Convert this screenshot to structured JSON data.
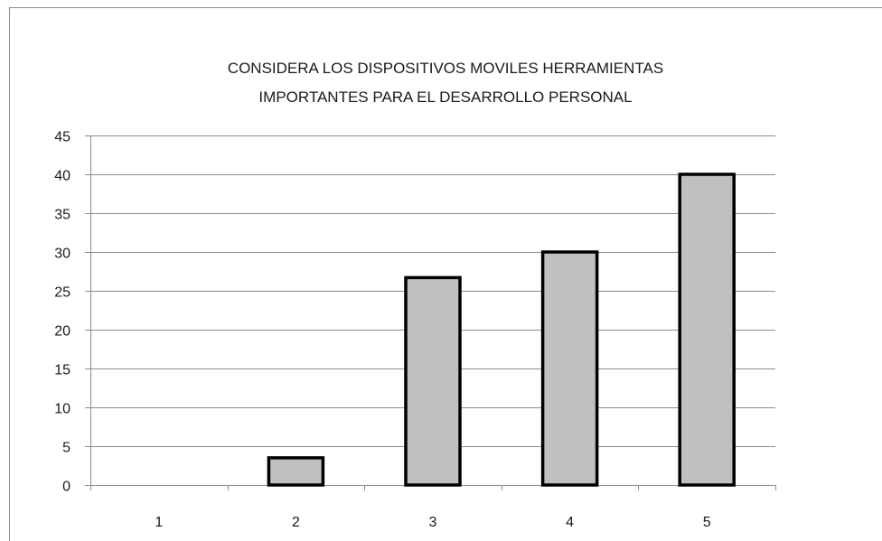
{
  "chart_data": {
    "type": "bar",
    "title_lines": [
      "CONSIDERA LOS DISPOSITIVOS MOVILES HERRAMIENTAS",
      "IMPORTANTES PARA EL DESARROLLO PERSONAL"
    ],
    "categories": [
      "1",
      "2",
      "3",
      "4",
      "5"
    ],
    "values": [
      0,
      3.5,
      26.7,
      30,
      40
    ],
    "ylim": [
      0,
      45
    ],
    "yticks": [
      0,
      5,
      10,
      15,
      20,
      25,
      30,
      35,
      40,
      45
    ],
    "xlabel": "",
    "ylabel": "",
    "grid": true,
    "legend": "none",
    "colors": {
      "bar_fill": "#c0c0c0",
      "bar_stroke": "#000000",
      "grid": "#8c8c8c",
      "axis": "#8c8c8c"
    }
  }
}
